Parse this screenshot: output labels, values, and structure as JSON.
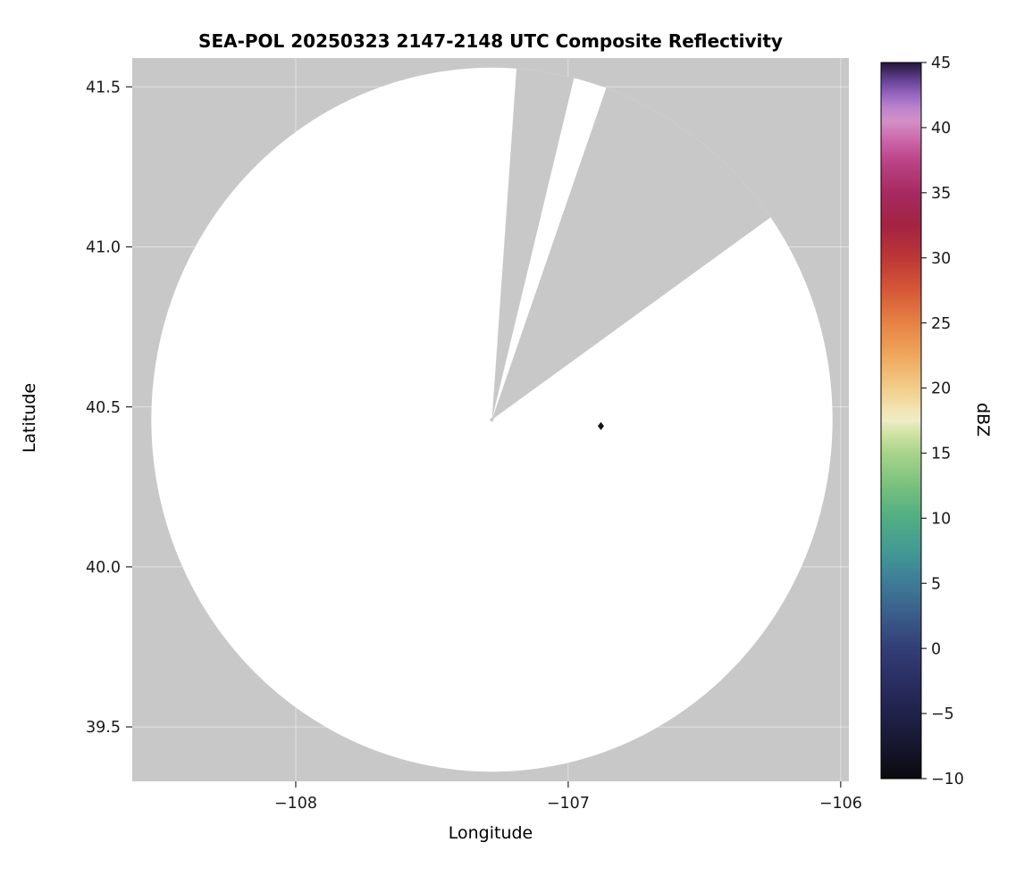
{
  "chart_data": {
    "type": "heatmap",
    "title": "SEA-POL 20250323 2147-2148 UTC Composite Reflectivity",
    "xlabel": "Longitude",
    "ylabel": "Latitude",
    "xlim": [
      -108.6,
      -105.97
    ],
    "ylim": [
      39.33,
      41.59
    ],
    "xticks": [
      -108,
      -107,
      -106
    ],
    "xtick_labels": [
      "−108",
      "−107",
      "−106"
    ],
    "yticks": [
      39.5,
      40.0,
      40.5,
      41.0,
      41.5
    ],
    "ytick_labels": [
      "39.5",
      "40.0",
      "40.5",
      "41.0",
      "41.5"
    ],
    "grid": true,
    "grid_color": "rgba(255,255,255,0.45)",
    "plot_background": "#c8c8c8",
    "coverage": {
      "center_lon": -107.28,
      "center_lat": 40.46,
      "radius_lon": 1.25,
      "radius_lat": 1.1,
      "fill": "#ffffff"
    },
    "blocked_sectors": [
      {
        "azimuth_from_deg": 4,
        "azimuth_to_deg": 13.5
      },
      {
        "azimuth_from_deg": 19,
        "azimuth_to_deg": 54
      }
    ],
    "echoes": [
      {
        "lon": -106.88,
        "lat": 40.44,
        "dbz_estimate": 45,
        "color": "#16101e"
      }
    ],
    "radar_site_mark": {
      "color": "#c8c8c8",
      "radius_px": 2
    },
    "colorbar": {
      "label": "dBZ",
      "min": -10,
      "max": 45,
      "ticks": [
        45,
        40,
        35,
        30,
        25,
        20,
        15,
        10,
        5,
        0,
        -5,
        -10
      ],
      "tick_labels": [
        "45",
        "40",
        "35",
        "30",
        "25",
        "20",
        "15",
        "10",
        "5",
        "0",
        "−5",
        "−10"
      ],
      "gradient_stops": [
        {
          "pos": 0.0,
          "color": "#0a0a0d"
        },
        {
          "pos": 0.045,
          "color": "#16172e"
        },
        {
          "pos": 0.091,
          "color": "#20214a"
        },
        {
          "pos": 0.136,
          "color": "#2a2e62"
        },
        {
          "pos": 0.182,
          "color": "#323e76"
        },
        {
          "pos": 0.227,
          "color": "#3a5c89"
        },
        {
          "pos": 0.273,
          "color": "#3e7b97"
        },
        {
          "pos": 0.318,
          "color": "#429a94"
        },
        {
          "pos": 0.364,
          "color": "#50ae82"
        },
        {
          "pos": 0.409,
          "color": "#78c17d"
        },
        {
          "pos": 0.455,
          "color": "#a9d48a"
        },
        {
          "pos": 0.482,
          "color": "#cfe3a4"
        },
        {
          "pos": 0.5,
          "color": "#eeedc5"
        },
        {
          "pos": 0.518,
          "color": "#f2e2ad"
        },
        {
          "pos": 0.545,
          "color": "#f2cd89"
        },
        {
          "pos": 0.591,
          "color": "#efa75c"
        },
        {
          "pos": 0.636,
          "color": "#e68245"
        },
        {
          "pos": 0.682,
          "color": "#d65837"
        },
        {
          "pos": 0.727,
          "color": "#bc3736"
        },
        {
          "pos": 0.773,
          "color": "#a32343"
        },
        {
          "pos": 0.818,
          "color": "#a62a61"
        },
        {
          "pos": 0.864,
          "color": "#bc4589"
        },
        {
          "pos": 0.891,
          "color": "#cb66a8"
        },
        {
          "pos": 0.918,
          "color": "#d38fc5"
        },
        {
          "pos": 0.936,
          "color": "#bd85cd"
        },
        {
          "pos": 0.955,
          "color": "#9866c0"
        },
        {
          "pos": 0.973,
          "color": "#6b479b"
        },
        {
          "pos": 1.0,
          "color": "#251539"
        }
      ]
    }
  }
}
